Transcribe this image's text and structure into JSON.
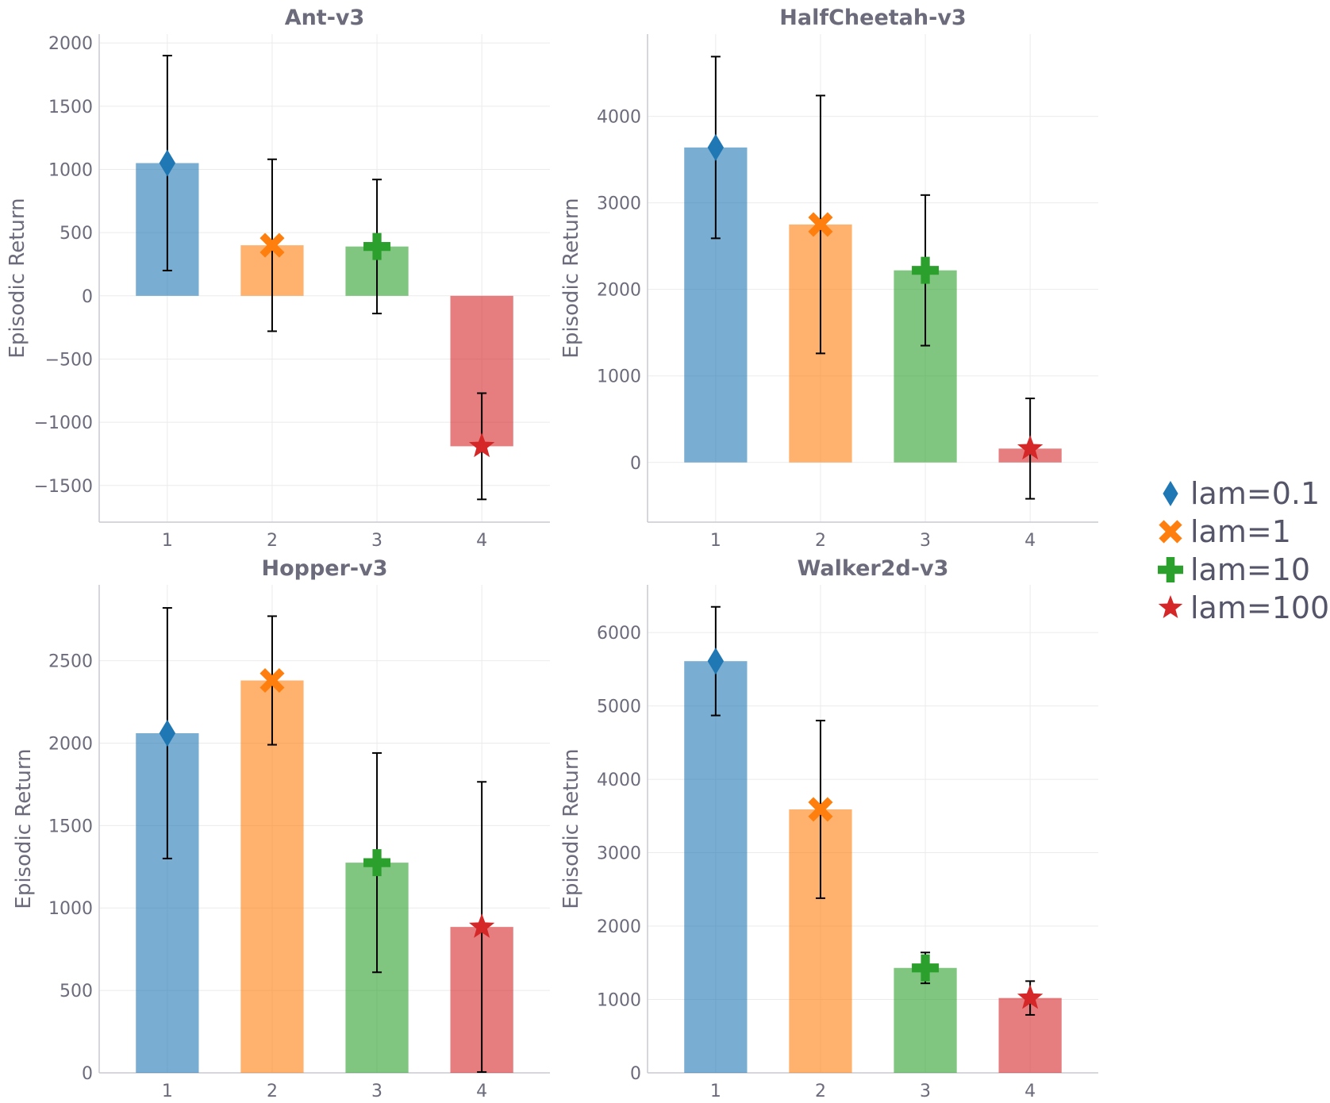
{
  "chart_data": [
    {
      "type": "bar",
      "title": "Ant-v3",
      "ylabel": "Episodic Return",
      "categories": [
        "1",
        "2",
        "3",
        "4"
      ],
      "series": [
        {
          "name": "lam=0.1",
          "value": 1050,
          "err": 850,
          "color": "#1f77b4",
          "marker": "diamond"
        },
        {
          "name": "lam=1",
          "value": 400,
          "err": 680,
          "color": "#ff7f0e",
          "marker": "x"
        },
        {
          "name": "lam=10",
          "value": 390,
          "err": 530,
          "color": "#2ca02c",
          "marker": "plus"
        },
        {
          "name": "lam=100",
          "value": -1190,
          "err": 420,
          "color": "#d62728",
          "marker": "star"
        }
      ],
      "ylim": [
        -1790,
        2070
      ],
      "yticks": [
        -1500,
        -1000,
        -500,
        0,
        500,
        1000,
        1500,
        2000
      ],
      "ytick_labels": [
        "−1500",
        "−1000",
        "−500",
        "0",
        "500",
        "1000",
        "1500",
        "2000"
      ],
      "grid": true
    },
    {
      "type": "bar",
      "title": "HalfCheetah-v3",
      "ylabel": "Episodic Return",
      "categories": [
        "1",
        "2",
        "3",
        "4"
      ],
      "series": [
        {
          "name": "lam=0.1",
          "value": 3640,
          "err": 1050,
          "color": "#1f77b4",
          "marker": "diamond"
        },
        {
          "name": "lam=1",
          "value": 2750,
          "err": 1490,
          "color": "#ff7f0e",
          "marker": "x"
        },
        {
          "name": "lam=10",
          "value": 2220,
          "err": 870,
          "color": "#2ca02c",
          "marker": "plus"
        },
        {
          "name": "lam=100",
          "value": 160,
          "err": 580,
          "color": "#d62728",
          "marker": "star"
        }
      ],
      "ylim": [
        -690,
        4950
      ],
      "yticks": [
        0,
        1000,
        2000,
        3000,
        4000
      ],
      "ytick_labels": [
        "0",
        "1000",
        "2000",
        "3000",
        "4000"
      ],
      "grid": true
    },
    {
      "type": "bar",
      "title": "Hopper-v3",
      "ylabel": "Episodic Return",
      "categories": [
        "1",
        "2",
        "3",
        "4"
      ],
      "series": [
        {
          "name": "lam=0.1",
          "value": 2060,
          "err": 760,
          "color": "#1f77b4",
          "marker": "diamond"
        },
        {
          "name": "lam=1",
          "value": 2380,
          "err": 390,
          "color": "#ff7f0e",
          "marker": "x"
        },
        {
          "name": "lam=10",
          "value": 1275,
          "err": 665,
          "color": "#2ca02c",
          "marker": "plus"
        },
        {
          "name": "lam=100",
          "value": 885,
          "err": 880,
          "color": "#d62728",
          "marker": "star"
        }
      ],
      "ylim": [
        0,
        2960
      ],
      "yticks": [
        0,
        500,
        1000,
        1500,
        2000,
        2500
      ],
      "ytick_labels": [
        "0",
        "500",
        "1000",
        "1500",
        "2000",
        "2500"
      ],
      "grid": true
    },
    {
      "type": "bar",
      "title": "Walker2d-v3",
      "ylabel": "Episodic Return",
      "categories": [
        "1",
        "2",
        "3",
        "4"
      ],
      "series": [
        {
          "name": "lam=0.1",
          "value": 5610,
          "err": 740,
          "color": "#1f77b4",
          "marker": "diamond"
        },
        {
          "name": "lam=1",
          "value": 3590,
          "err": 1210,
          "color": "#ff7f0e",
          "marker": "x"
        },
        {
          "name": "lam=10",
          "value": 1430,
          "err": 210,
          "color": "#2ca02c",
          "marker": "plus"
        },
        {
          "name": "lam=100",
          "value": 1020,
          "err": 230,
          "color": "#d62728",
          "marker": "star"
        }
      ],
      "ylim": [
        0,
        6650
      ],
      "yticks": [
        0,
        1000,
        2000,
        3000,
        4000,
        5000,
        6000
      ],
      "ytick_labels": [
        "0",
        "1000",
        "2000",
        "3000",
        "4000",
        "5000",
        "6000"
      ],
      "grid": true
    }
  ],
  "legend": {
    "placement": "right",
    "entries": [
      {
        "label": "lam=0.1",
        "color": "#1f77b4",
        "marker": "diamond"
      },
      {
        "label": "lam=1",
        "color": "#ff7f0e",
        "marker": "x"
      },
      {
        "label": "lam=10",
        "color": "#2ca02c",
        "marker": "plus"
      },
      {
        "label": "lam=100",
        "color": "#d62728",
        "marker": "star"
      }
    ]
  }
}
